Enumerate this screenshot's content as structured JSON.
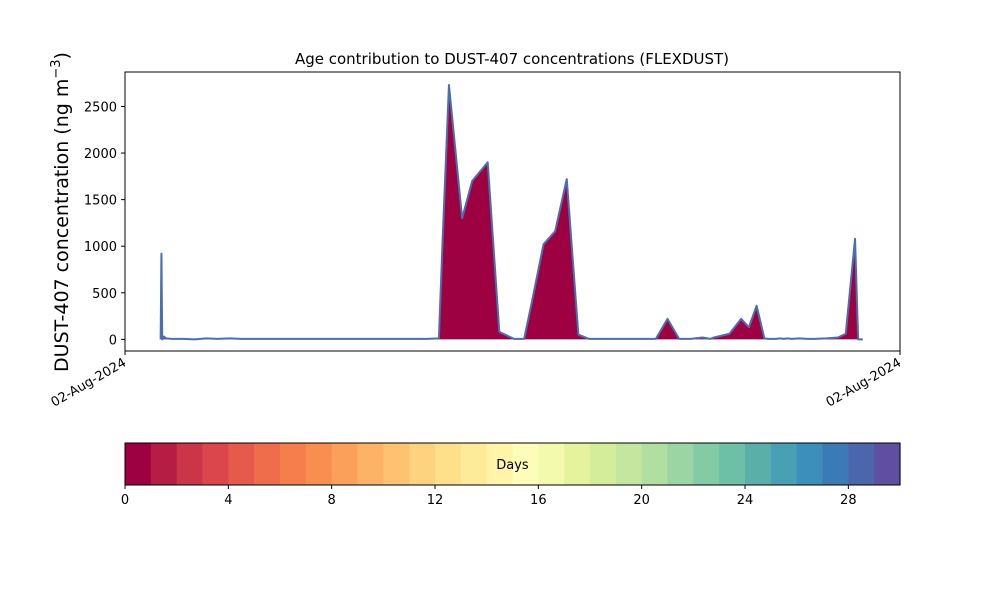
{
  "chart_data": {
    "type": "area",
    "title": "Age contribution to DUST-407 concentrations (FLEXDUST)",
    "ylabel": "DUST-407 concentration (ng m",
    "ylabel_unit_sup": "−3",
    "ylabel_close": ")",
    "ylim": [
      -125,
      2870
    ],
    "yticks": [
      0,
      500,
      1000,
      1500,
      2000,
      2500
    ],
    "xlim": [
      0,
      100
    ],
    "xtick_labels": [
      {
        "label": "02-Aug-2024",
        "pos": 0
      },
      {
        "label": "02-Aug-2024",
        "pos": 100
      }
    ],
    "series_fill_color": "#9e0142",
    "series_outline_color": "#4a6fb0",
    "series": [
      {
        "x": [
          4.6,
          4.7,
          4.8,
          5.0,
          5.3,
          6.0,
          7.5,
          9.0,
          10.5,
          12.0,
          13.5,
          15.0,
          16.5,
          18.0,
          19.5,
          21.0,
          22.5,
          24.0,
          25.5,
          27.0,
          28.5,
          30.0,
          31.5,
          33.0,
          34.5,
          36.0,
          37.5,
          39.0,
          40.5,
          41.0,
          41.8,
          43.5,
          44.8,
          46.8,
          48.3,
          50.2,
          51.5,
          52.5,
          54.0,
          55.5,
          57.0,
          58.5,
          59.9,
          62.3,
          64.2,
          65.5,
          67.0,
          68.5,
          70.0,
          71.5,
          73.0,
          74.5,
          75.2,
          75.5,
          76.0,
          78.0,
          79.5,
          80.5,
          81.5,
          82.5,
          83.0,
          84.0,
          84.5,
          85.0,
          85.5,
          86.0,
          87.0,
          88.0,
          89.0,
          90.5,
          92.0,
          93.0,
          94.2,
          94.6,
          95.2
        ],
        "y": [
          0,
          920,
          0,
          30,
          10,
          5,
          5,
          0,
          10,
          5,
          10,
          5,
          5,
          5,
          5,
          5,
          5,
          5,
          5,
          5,
          5,
          5,
          5,
          5,
          5,
          5,
          5,
          5,
          10,
          1100,
          2730,
          1300,
          1700,
          1900,
          80,
          5,
          5,
          400,
          1020,
          1160,
          1720,
          50,
          5,
          5,
          5,
          5,
          5,
          5,
          220,
          5,
          5,
          20,
          10,
          5,
          20,
          60,
          220,
          130,
          360,
          10,
          5,
          5,
          10,
          5,
          10,
          5,
          10,
          5,
          5,
          10,
          20,
          60,
          1080,
          0,
          0
        ]
      }
    ]
  },
  "colorbar": {
    "label": "Days",
    "min": 0,
    "max": 30,
    "ticks": [
      0,
      4,
      8,
      12,
      16,
      20,
      24,
      28
    ],
    "colors": [
      "#9e0142",
      "#b51d44",
      "#cb3548",
      "#da464c",
      "#e55a4b",
      "#f06d4b",
      "#f67d4c",
      "#f98e51",
      "#fba05b",
      "#fdb365",
      "#fec271",
      "#fed380",
      "#fee08b",
      "#feeb99",
      "#fff4a8",
      "#fcfdb8",
      "#f3faae",
      "#e5f49c",
      "#d4ed9b",
      "#c4e69e",
      "#b1dea1",
      "#9bd5a4",
      "#83cba5",
      "#6dc0a5",
      "#5ab0a9",
      "#4aa0b3",
      "#3b8fba",
      "#3a7bb6",
      "#4c66ad",
      "#5e4fa2"
    ]
  }
}
